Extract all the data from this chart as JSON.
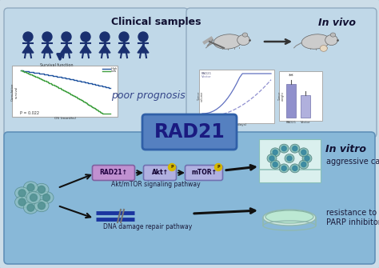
{
  "fig_w": 4.74,
  "fig_h": 3.35,
  "dpi": 100,
  "bg_color": "#c8dce8",
  "outer_face": "#ccdde8",
  "top_box_face": "#c0d8e8",
  "bottom_box_face": "#88b8d8",
  "rad21_box_face": "#5580c0",
  "rad21_text": "RAD21",
  "rad21_text_color": "#1a1a80",
  "clinical_text": "Clinical samples",
  "invivo_text": "In vivo",
  "invitro_text": "In vitro",
  "poor_prognosis": "poor prognosis",
  "akt_text": "Akt/mTOR signaling pathway",
  "dna_text": "DNA damage repair pathway",
  "aggressive_text": "aggressive cancer",
  "resistance_text": "resistance to\nPARP inhibitors",
  "person_color": "#1a3070",
  "arrow_color": "#111111",
  "pill_rad21_face": "#c090d0",
  "pill_rad21_edge": "#8060a0",
  "pill_akt_face": "#b0b0e0",
  "pill_akt_edge": "#7070b0",
  "pill_mtor_face": "#b0b0e0",
  "pill_mtor_edge": "#7070b0",
  "p_circle_color": "#d4b800",
  "cell_color": "#90c0c0",
  "cell_nucleus": "#509090",
  "cancer_cell_color": "#80b8b0",
  "cancer_nucleus": "#3888a0",
  "surv_blue": "#2255a0",
  "surv_green": "#40a040",
  "plot_line1": "#6070c0",
  "plot_line2": "#9090d0",
  "bar_color": "#9090cc",
  "mouse_color": "#888888"
}
